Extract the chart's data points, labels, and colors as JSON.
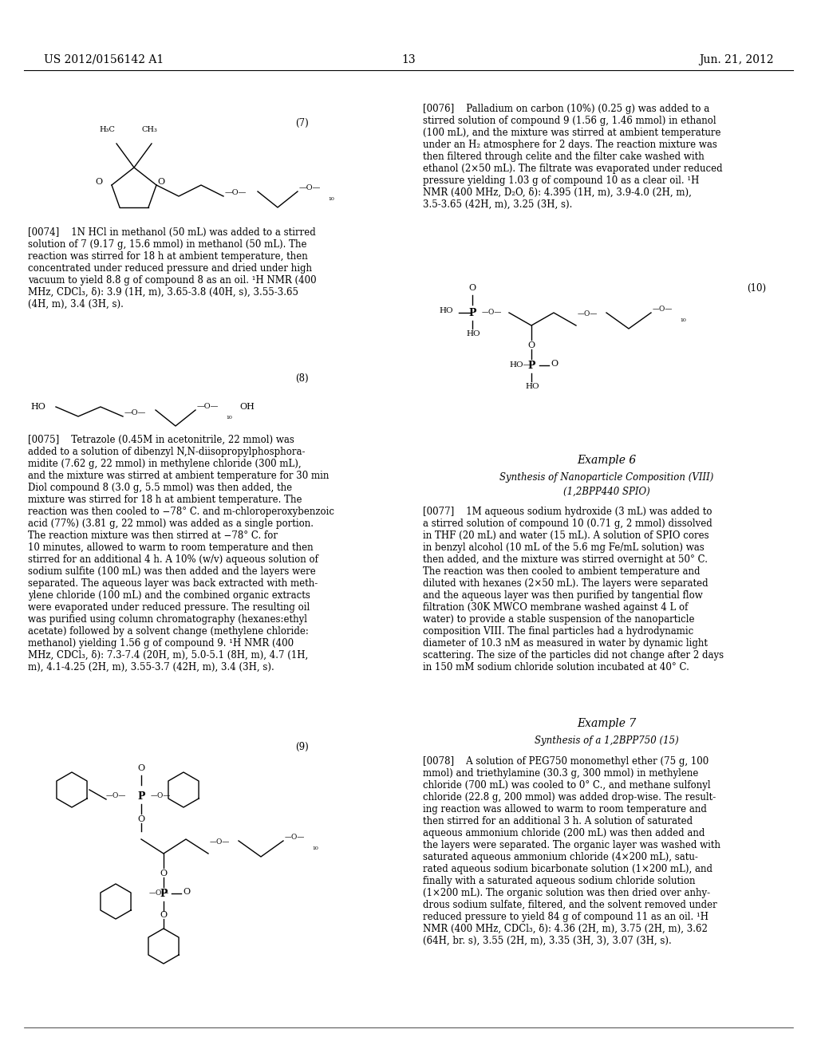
{
  "patent_number": "US 2012/0156142 A1",
  "date": "Jun. 21, 2012",
  "page": "13",
  "background_color": "#ffffff",
  "text_color": "#000000",
  "font_size_body": 8.5,
  "font_size_header": 10.0,
  "para0074": "[0074]    1N HCl in methanol (50 mL) was added to a stirred\nsolution of 7 (9.17 g, 15.6 mmol) in methanol (50 mL). The\nreaction was stirred for 18 h at ambient temperature, then\nconcentrated under reduced pressure and dried under high\nvacuum to yield 8.8 g of compound 8 as an oil. ¹H NMR (400\nMHz, CDCl₃, δ): 3.9 (1H, m), 3.65-3.8 (40H, s), 3.55-3.65\n(4H, m), 3.4 (3H, s).",
  "para0075": "[0075]    Tetrazole (0.45M in acetonitrile, 22 mmol) was\nadded to a solution of dibenzyl N,N-diisopropylphosphora-\nmidite (7.62 g, 22 mmol) in methylene chloride (300 mL),\nand the mixture was stirred at ambient temperature for 30 min\nDiol compound 8 (3.0 g, 5.5 mmol) was then added, the\nmixture was stirred for 18 h at ambient temperature. The\nreaction was then cooled to −78° C. and m-chloroperoxybenzoic\nacid (77%) (3.81 g, 22 mmol) was added as a single portion.\nThe reaction mixture was then stirred at −78° C. for\n10 minutes, allowed to warm to room temperature and then\nstirred for an additional 4 h. A 10% (w/v) aqueous solution of\nsodium sulfite (100 mL) was then added and the layers were\nseparated. The aqueous layer was back extracted with meth-\nylene chloride (100 mL) and the combined organic extracts\nwere evaporated under reduced pressure. The resulting oil\nwas purified using column chromatography (hexanes:ethyl\nacetate) followed by a solvent change (methylene chloride:\nmethanol) yielding 1.56 g of compound 9. ¹H NMR (400\nMHz, CDCl₃, δ): 7.3-7.4 (20H, m), 5.0-5.1 (8H, m), 4.7 (1H,\nm), 4.1-4.25 (2H, m), 3.55-3.7 (42H, m), 3.4 (3H, s).",
  "para0076": "[0076]    Palladium on carbon (10%) (0.25 g) was added to a\nstirred solution of compound 9 (1.56 g, 1.46 mmol) in ethanol\n(100 mL), and the mixture was stirred at ambient temperature\nunder an H₂ atmosphere for 2 days. The reaction mixture was\nthen filtered through celite and the filter cake washed with\nethanol (2×50 mL). The filtrate was evaporated under reduced\npressure yielding 1.03 g of compound 10 as a clear oil. ¹H\nNMR (400 MHz, D₂O, δ): 4.395 (1H, m), 3.9-4.0 (2H, m),\n3.5-3.65 (42H, m), 3.25 (3H, s).",
  "para0077": "[0077]    1M aqueous sodium hydroxide (3 mL) was added to\na stirred solution of compound 10 (0.71 g, 2 mmol) dissolved\nin THF (20 mL) and water (15 mL). A solution of SPIO cores\nin benzyl alcohol (10 mL of the 5.6 mg Fe/mL solution) was\nthen added, and the mixture was stirred overnight at 50° C.\nThe reaction was then cooled to ambient temperature and\ndiluted with hexanes (2×50 mL). The layers were separated\nand the aqueous layer was then purified by tangential flow\nfiltration (30K MWCO membrane washed against 4 L of\nwater) to provide a stable suspension of the nanoparticle\ncomposition VIII. The final particles had a hydrodynamic\ndiameter of 10.3 nM as measured in water by dynamic light\nscattering. The size of the particles did not change after 2 days\nin 150 mM sodium chloride solution incubated at 40° C.",
  "para0078": "[0078]    A solution of PEG750 monomethyl ether (75 g, 100\nmmol) and triethylamine (30.3 g, 300 mmol) in methylene\nchloride (700 mL) was cooled to 0° C., and methane sulfonyl\nchloride (22.8 g, 200 mmol) was added drop-wise. The result-\ning reaction was allowed to warm to room temperature and\nthen stirred for an additional 3 h. A solution of saturated\naqueous ammonium chloride (200 mL) was then added and\nthe layers were separated. The organic layer was washed with\nsaturated aqueous ammonium chloride (4×200 mL), satu-\nrated aqueous sodium bicarbonate solution (1×200 mL), and\nfinally with a saturated aqueous sodium chloride solution\n(1×200 mL). The organic solution was then dried over anhy-\ndrous sodium sulfate, filtered, and the solvent removed under\nreduced pressure to yield 84 g of compound 11 as an oil. ¹H\nNMR (400 MHz, CDCl₃, δ): 4.36 (2H, m), 3.75 (2H, m), 3.62\n(64H, br. s), 3.55 (2H, m), 3.35 (3H, 3), 3.07 (3H, s).",
  "example6_title": "Example 6",
  "example6_sub": "Synthesis of Nanoparticle Composition (VIII)\n(1,2BPP440 SPIO)",
  "example7_title": "Example 7",
  "example7_sub": "Synthesis of a 1,2BPP750 (15)"
}
